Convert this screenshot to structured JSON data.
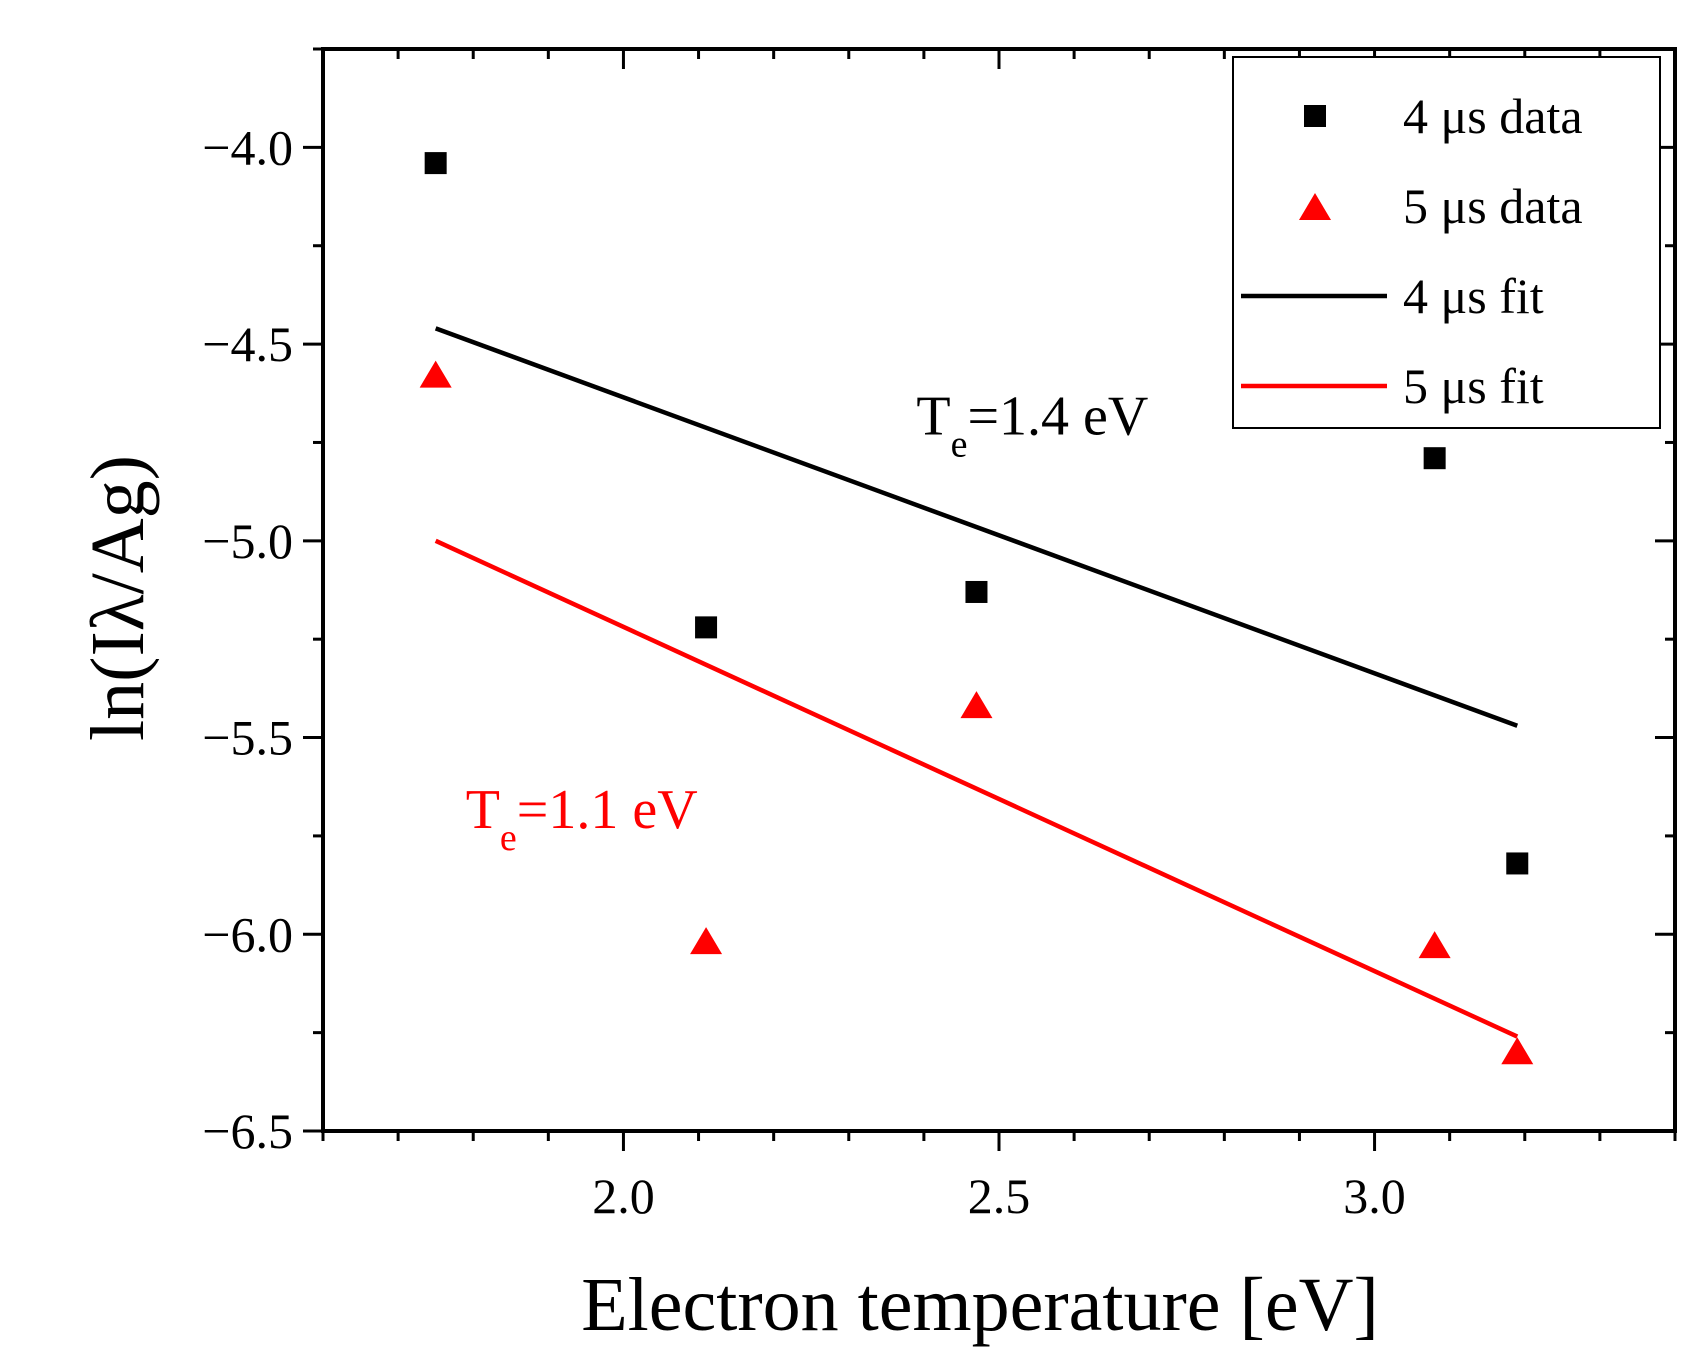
{
  "chart_data": {
    "type": "scatter",
    "title": "",
    "xlabel": "Electron temperature [eV]",
    "ylabel": "ln(Iλ/Ag)",
    "xlim": [
      1.6,
      3.4
    ],
    "ylim": [
      -6.5,
      -3.75
    ],
    "xticks": [
      2.0,
      2.5,
      3.0
    ],
    "xtick_labels": [
      "2.0",
      "2.5",
      "3.0"
    ],
    "yticks": [
      -4.0,
      -4.5,
      -5.0,
      -5.5,
      -6.0,
      -6.5
    ],
    "ytick_labels": [
      "−4.0",
      "−4.5",
      "−5.0",
      "−5.5",
      "−6.0",
      "−6.5"
    ],
    "grid": false,
    "legend_position": "top-right",
    "series": [
      {
        "name": "4 μs data",
        "kind": "scatter",
        "marker": "square",
        "color": "#000000",
        "points": [
          {
            "x": 1.75,
            "y": -4.04
          },
          {
            "x": 2.11,
            "y": -5.22
          },
          {
            "x": 2.47,
            "y": -5.13
          },
          {
            "x": 3.08,
            "y": -4.79
          },
          {
            "x": 3.19,
            "y": -5.82
          }
        ]
      },
      {
        "name": "5 μs data",
        "kind": "scatter",
        "marker": "triangle",
        "color": "#ff0000",
        "points": [
          {
            "x": 1.75,
            "y": -4.58
          },
          {
            "x": 2.11,
            "y": -6.02
          },
          {
            "x": 2.47,
            "y": -5.42
          },
          {
            "x": 3.08,
            "y": -6.03
          },
          {
            "x": 3.19,
            "y": -6.3
          }
        ]
      },
      {
        "name": "4 μs fit",
        "kind": "line",
        "color": "#000000",
        "points": [
          {
            "x": 1.75,
            "y": -4.46
          },
          {
            "x": 3.19,
            "y": -5.47
          }
        ]
      },
      {
        "name": "5 μs fit",
        "kind": "line",
        "color": "#ff0000",
        "points": [
          {
            "x": 1.75,
            "y": -5.0
          },
          {
            "x": 3.19,
            "y": -6.26
          }
        ]
      }
    ],
    "annotations": [
      {
        "name": "annotation-4us",
        "main": "T",
        "sub": "e",
        "rest": "=1.4 eV",
        "x": 2.39,
        "y": -4.73,
        "color": "#000000"
      },
      {
        "name": "annotation-5us",
        "main": "T",
        "sub": "e",
        "rest": "=1.1 eV",
        "x": 1.79,
        "y": -5.73,
        "color": "#ff0000"
      }
    ]
  }
}
